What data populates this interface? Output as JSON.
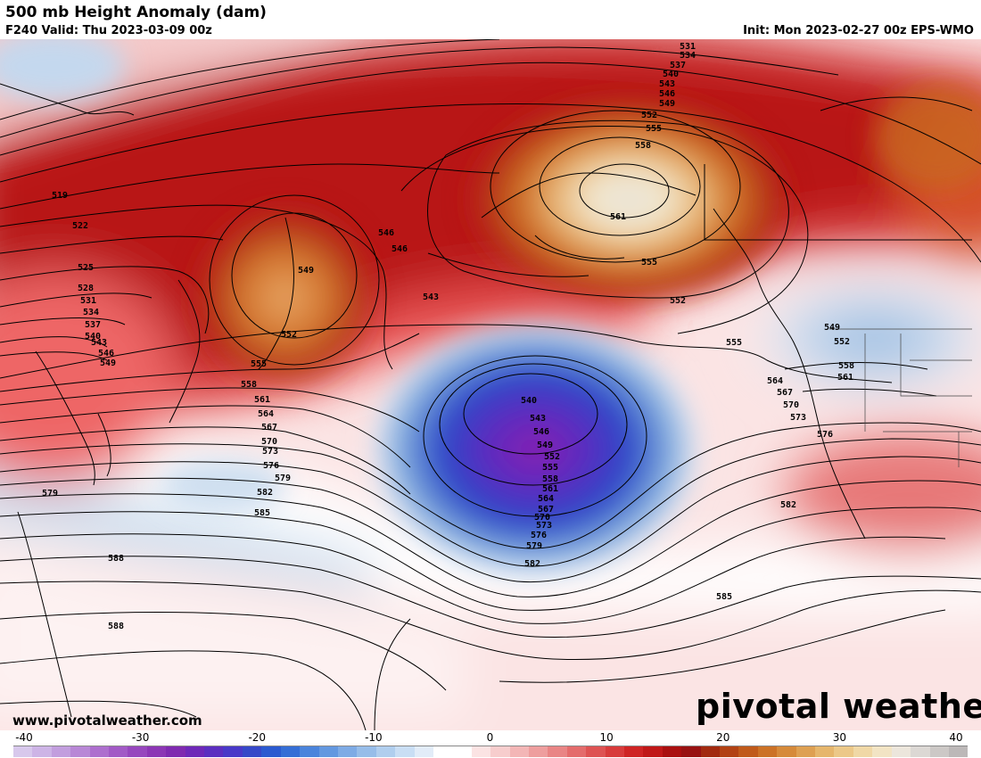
{
  "header": {
    "title": "500 mb Height Anomaly (dam)",
    "valid": "F240 Valid: Thu 2023-03-09 00z",
    "init": "Init: Mon 2023-02-27 00z EPS-WMO"
  },
  "footer": {
    "website": "www.pivotalweather.com",
    "brand": "pivotal weather"
  },
  "colorbar": {
    "min": -40,
    "max": 40,
    "tick_labels": [
      "-40",
      "-30",
      "-20",
      "-10",
      "0",
      "10",
      "20",
      "30",
      "40"
    ]
  },
  "colors": {
    "strong_negative": "#8b22b0",
    "negative": "#2440c0",
    "weak_negative": "#bcd4ea",
    "neutral": "#ffffff",
    "weak_positive": "#f6d0d0",
    "positive": "#c81820",
    "strong_positive": "#a83c10",
    "max_positive": "#f2ead8"
  },
  "contour_labels": [
    {
      "text": "531"
    },
    {
      "text": "534"
    },
    {
      "text": "537"
    },
    {
      "text": "540"
    },
    {
      "text": "543"
    },
    {
      "text": "546"
    },
    {
      "text": "549"
    },
    {
      "text": "552"
    },
    {
      "text": "555"
    },
    {
      "text": "558"
    },
    {
      "text": "561"
    },
    {
      "text": "555"
    },
    {
      "text": "552"
    },
    {
      "text": "519"
    },
    {
      "text": "522"
    },
    {
      "text": "525"
    },
    {
      "text": "528"
    },
    {
      "text": "531"
    },
    {
      "text": "534"
    },
    {
      "text": "537"
    },
    {
      "text": "540"
    },
    {
      "text": "543"
    },
    {
      "text": "546"
    },
    {
      "text": "549"
    },
    {
      "text": "549"
    },
    {
      "text": "546"
    },
    {
      "text": "546"
    },
    {
      "text": "543"
    },
    {
      "text": "552"
    },
    {
      "text": "555"
    },
    {
      "text": "558"
    },
    {
      "text": "561"
    },
    {
      "text": "564"
    },
    {
      "text": "567"
    },
    {
      "text": "570"
    },
    {
      "text": "573"
    },
    {
      "text": "576"
    },
    {
      "text": "579"
    },
    {
      "text": "582"
    },
    {
      "text": "585"
    },
    {
      "text": "579"
    },
    {
      "text": "588"
    },
    {
      "text": "588"
    },
    {
      "text": "540"
    },
    {
      "text": "543"
    },
    {
      "text": "546"
    },
    {
      "text": "549"
    },
    {
      "text": "552"
    },
    {
      "text": "555"
    },
    {
      "text": "558"
    },
    {
      "text": "561"
    },
    {
      "text": "564"
    },
    {
      "text": "567"
    },
    {
      "text": "570"
    },
    {
      "text": "573"
    },
    {
      "text": "576"
    },
    {
      "text": "579"
    },
    {
      "text": "582"
    },
    {
      "text": "585"
    },
    {
      "text": "555"
    },
    {
      "text": "564"
    },
    {
      "text": "567"
    },
    {
      "text": "570"
    },
    {
      "text": "573"
    },
    {
      "text": "576"
    },
    {
      "text": "582"
    },
    {
      "text": "549"
    },
    {
      "text": "552"
    },
    {
      "text": "558"
    },
    {
      "text": "561"
    }
  ]
}
